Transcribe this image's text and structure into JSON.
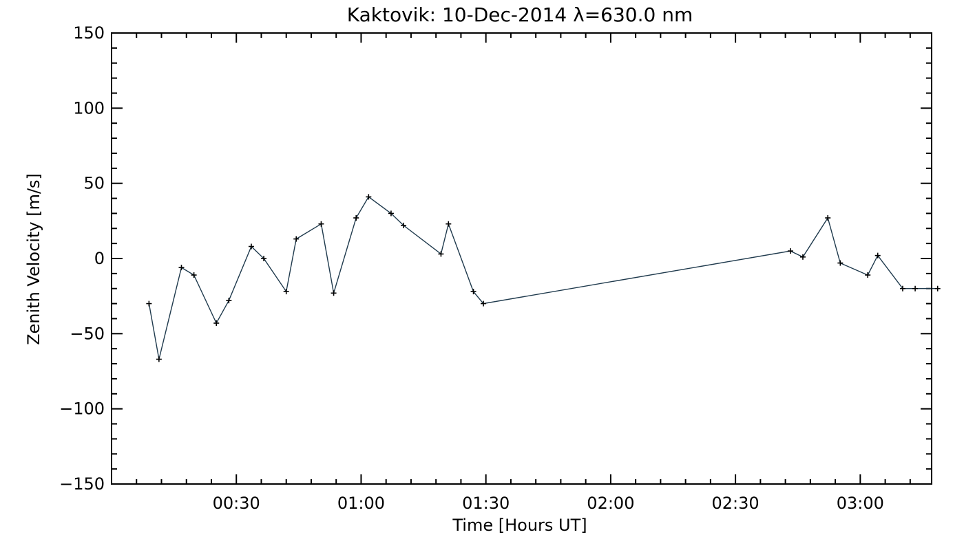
{
  "chart_data": {
    "type": "line",
    "title": "Kaktovik: 10-Dec-2014 λ=630.0 nm",
    "xlabel": "Time [Hours UT]",
    "ylabel": "Zenith Velocity [m/s]",
    "x_unit": "hours UT",
    "xlim": [
      0.0,
      3.286
    ],
    "ylim": [
      -150,
      150
    ],
    "x_tick_values": [
      0.5,
      1.0,
      1.5,
      2.0,
      2.5,
      3.0
    ],
    "x_tick_labels": [
      "00:30",
      "01:00",
      "01:30",
      "02:00",
      "02:30",
      "03:00"
    ],
    "y_tick_values": [
      -150,
      -100,
      -50,
      0,
      50,
      100,
      150
    ],
    "y_tick_labels": [
      "−150",
      "−100",
      "−50",
      "0",
      "50",
      "100",
      "150"
    ],
    "line_color": "#1f3a4d",
    "marker": "plus",
    "grid": false,
    "series": [
      {
        "x": [
          0.15,
          0.19,
          0.28,
          0.33,
          0.42,
          0.47,
          0.56,
          0.61,
          0.7,
          0.74,
          0.84,
          0.89,
          0.98,
          1.03,
          1.12,
          1.17,
          1.32,
          1.35,
          1.45,
          1.49,
          2.72,
          2.77,
          2.87,
          2.92,
          3.03,
          3.07,
          3.17,
          3.22,
          3.31
        ],
        "y": [
          -30,
          -67,
          -6,
          -11,
          -43,
          -28,
          8,
          0,
          -22,
          13,
          23,
          -23,
          27,
          41,
          30,
          22,
          3,
          23,
          -22,
          -30,
          5,
          1,
          27,
          -3,
          -11,
          2,
          -20,
          -20,
          -20
        ]
      }
    ]
  }
}
